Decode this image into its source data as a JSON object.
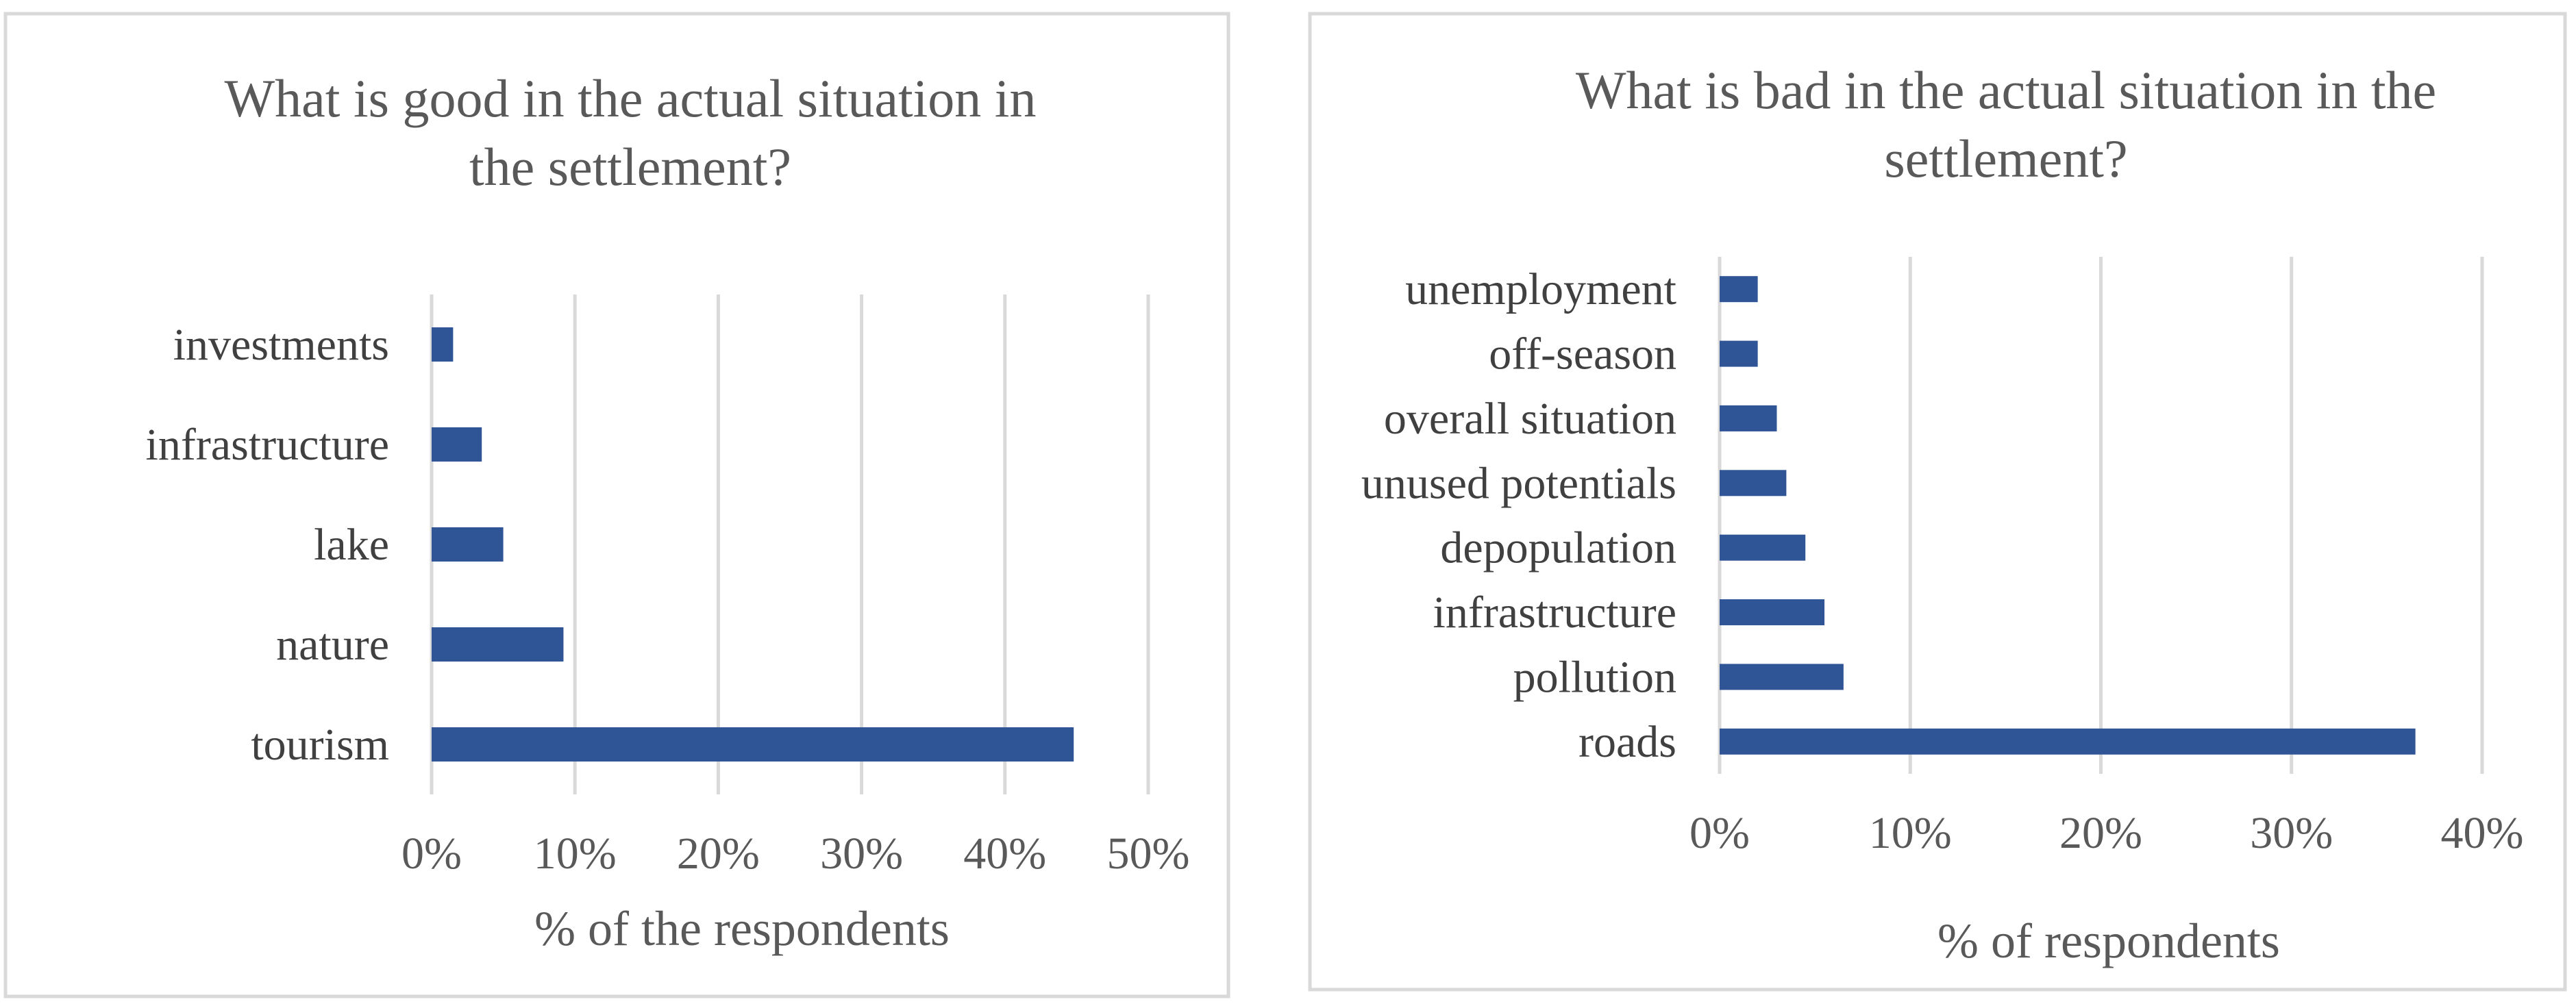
{
  "chart_data": [
    {
      "type": "bar",
      "orientation": "horizontal",
      "title": "What is good in the actual situation in the settlement?",
      "title_lines": [
        "What is good in the actual situation in",
        "the settlement?"
      ],
      "categories": [
        "tourism",
        "nature",
        "lake",
        "infrastructure",
        "investments"
      ],
      "values": [
        44.8,
        9.2,
        5.0,
        3.5,
        1.5
      ],
      "xlabel": "% of the respondents",
      "ylabel": "",
      "xlim": [
        0,
        50
      ],
      "ticks": [
        0,
        10,
        20,
        30,
        40,
        50
      ],
      "tick_labels": [
        "0%",
        "10%",
        "20%",
        "30%",
        "40%",
        "50%"
      ],
      "grid": true,
      "bar_color": "#2f5597"
    },
    {
      "type": "bar",
      "orientation": "horizontal",
      "title": "What is bad in the actual situation in the settlement?",
      "title_lines": [
        "What is bad in the actual situation in the",
        "settlement?"
      ],
      "categories": [
        "roads",
        "pollution",
        "infrastructure",
        "depopulation",
        "unused potentials",
        "overall situation",
        "off-season",
        "unemployment"
      ],
      "values": [
        36.5,
        6.5,
        5.5,
        4.5,
        3.5,
        3.0,
        2.0,
        2.0
      ],
      "xlabel": "% of respondents",
      "ylabel": "",
      "xlim": [
        0,
        40
      ],
      "ticks": [
        0,
        10,
        20,
        30,
        40
      ],
      "tick_labels": [
        "0%",
        "10%",
        "20%",
        "30%",
        "40%"
      ],
      "grid": true,
      "bar_color": "#2f5597"
    }
  ]
}
